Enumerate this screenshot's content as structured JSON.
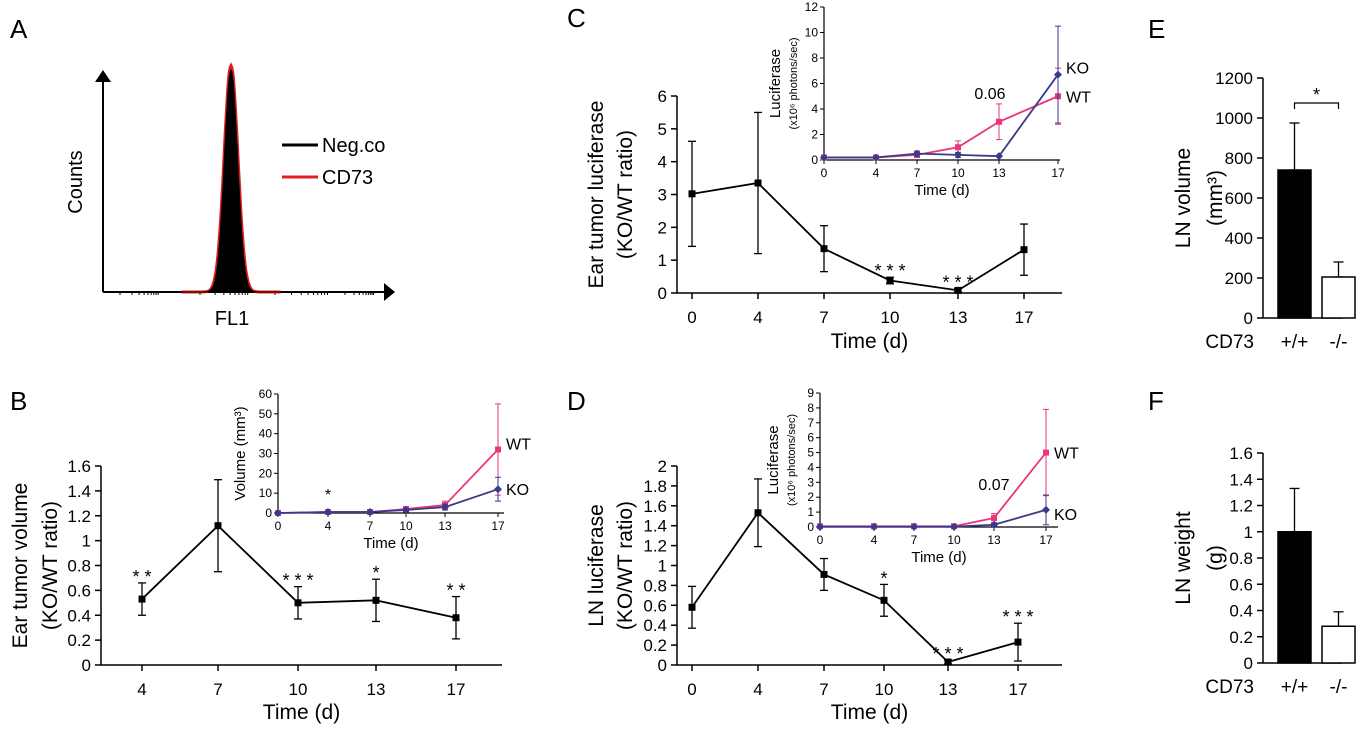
{
  "panel_labels": {
    "a": "A",
    "b": "B",
    "c": "C",
    "d": "D",
    "e": "E",
    "f": "F"
  },
  "colors": {
    "black": "#000000",
    "wt": "#e8357f",
    "ko": "#3a3a8c",
    "cd73_line": "#e02020"
  },
  "chart_data": [
    {
      "id": "A",
      "type": "histogram",
      "ylabel": "Counts",
      "xlabel": "FL1",
      "legend": [
        {
          "name": "Neg.co",
          "color": "#000000"
        },
        {
          "name": "CD73",
          "color": "#e02020"
        }
      ],
      "series": [
        {
          "name": "Neg.co",
          "peak": 1.0,
          "sd": 0.12
        },
        {
          "name": "CD73",
          "peak": 1.02,
          "sd": 0.125
        }
      ]
    },
    {
      "id": "B",
      "type": "line",
      "ylabel": "Ear tumor volume",
      "ylabel2": "(KO/WT ratio)",
      "xlabel": "Time (d)",
      "categories": [
        "4",
        "7",
        "10",
        "13",
        "17"
      ],
      "yticks": [
        "0",
        "0.2",
        "0.4",
        "0.6",
        "0.8",
        "1",
        "1.2",
        "1.4",
        "1.6"
      ],
      "ylim": [
        0,
        1.6
      ],
      "values": [
        0.53,
        1.12,
        0.5,
        0.52,
        0.38
      ],
      "err": [
        0.13,
        0.37,
        0.13,
        0.17,
        0.17
      ],
      "stars": [
        "**",
        "",
        "***",
        "*",
        "**"
      ],
      "inset": {
        "type": "line",
        "ylabel": "Volume (mm³)",
        "xlabel": "Time (d)",
        "x": [
          0,
          4,
          7,
          10,
          13,
          17
        ],
        "xticks": [
          "0",
          "4",
          "7",
          "10",
          "13",
          "17"
        ],
        "yticks": [
          "0",
          "10",
          "20",
          "30",
          "40",
          "50",
          "60"
        ],
        "ylim": [
          0,
          60
        ],
        "series": [
          {
            "name": "WT",
            "values": [
              0,
              0.5,
              0.5,
              2,
              4,
              32
            ],
            "err": [
              0,
              0.5,
              0.5,
              1,
              2,
              23
            ]
          },
          {
            "name": "KO",
            "values": [
              0,
              0.5,
              0.5,
              1.5,
              3,
              12
            ],
            "err": [
              0,
              0.5,
              0.5,
              1,
              1.5,
              6
            ]
          }
        ],
        "annotation": "*",
        "annotation_x": 4
      }
    },
    {
      "id": "C",
      "type": "line",
      "ylabel": "Ear tumor luciferase",
      "ylabel2": "(KO/WT ratio)",
      "xlabel": "Time (d)",
      "categories": [
        "0",
        "4",
        "7",
        "10",
        "13",
        "17"
      ],
      "yticks": [
        "0",
        "1",
        "2",
        "3",
        "4",
        "5",
        "6"
      ],
      "ylim": [
        0,
        6
      ],
      "values": [
        3.02,
        3.35,
        1.35,
        0.38,
        0.08,
        1.32
      ],
      "err": [
        1.6,
        2.15,
        0.7,
        0.1,
        0.05,
        0.78
      ],
      "stars": [
        "",
        "",
        "",
        "***",
        "***",
        ""
      ],
      "inset": {
        "type": "line",
        "ylabel": "Luciferase",
        "ylabel_sub": "(x10⁶ photons/sec)",
        "xlabel": "Time (d)",
        "x": [
          0,
          4,
          7,
          10,
          13,
          17
        ],
        "xticks": [
          "0",
          "4",
          "7",
          "10",
          "13",
          "17"
        ],
        "yticks": [
          "0",
          "2",
          "4",
          "6",
          "8",
          "10",
          "12"
        ],
        "ylim": [
          0,
          12
        ],
        "series": [
          {
            "name": "WT",
            "values": [
              0.2,
              0.2,
              0.4,
              1.0,
              3.0,
              5.0
            ],
            "err": [
              0.1,
              0.1,
              0.2,
              0.5,
              1.4,
              2.2
            ]
          },
          {
            "name": "KO",
            "values": [
              0.2,
              0.2,
              0.5,
              0.4,
              0.3,
              6.7
            ],
            "err": [
              0.1,
              0.1,
              0.2,
              0.2,
              0.1,
              3.8
            ]
          }
        ],
        "annotation": "0.06",
        "annotation_x": 13
      }
    },
    {
      "id": "D",
      "type": "line",
      "ylabel": "LN luciferase",
      "ylabel2": "(KO/WT ratio)",
      "xlabel": "Time (d)",
      "categories": [
        "0",
        "4",
        "7",
        "10",
        "13",
        "17"
      ],
      "yticks": [
        "0",
        "0.2",
        "0.4",
        "0.6",
        "0.8",
        "1",
        "1.2",
        "1.4",
        "1.6",
        "1.8",
        "2"
      ],
      "ylim": [
        0,
        2
      ],
      "values": [
        0.58,
        1.53,
        0.91,
        0.65,
        0.03,
        0.23
      ],
      "err": [
        0.21,
        0.34,
        0.16,
        0.16,
        0.02,
        0.19
      ],
      "stars": [
        "",
        "",
        "",
        "*",
        "***",
        "***"
      ],
      "inset": {
        "type": "line",
        "ylabel": "Luciferase",
        "ylabel_sub": "(x10⁶ photons/sec)",
        "xlabel": "Time (d)",
        "x": [
          0,
          4,
          7,
          10,
          13,
          17
        ],
        "xticks": [
          "0",
          "4",
          "7",
          "10",
          "13",
          "17"
        ],
        "yticks": [
          "0",
          "1",
          "2",
          "3",
          "4",
          "5",
          "6",
          "7",
          "8",
          "9"
        ],
        "ylim": [
          0,
          9
        ],
        "series": [
          {
            "name": "WT",
            "values": [
              0.05,
              0.05,
              0.05,
              0.05,
              0.6,
              5.0
            ],
            "err": [
              0.03,
              0.03,
              0.03,
              0.03,
              0.3,
              2.9
            ]
          },
          {
            "name": "KO",
            "values": [
              0.02,
              0.02,
              0.02,
              0.02,
              0.15,
              1.15
            ],
            "err": [
              0.01,
              0.01,
              0.01,
              0.01,
              0.1,
              1.0
            ]
          }
        ],
        "annotation": "0.07",
        "annotation_x": 13
      }
    },
    {
      "id": "E",
      "type": "bar",
      "ylabel": "LN volume",
      "ylabel_unit": "(mm³)",
      "group_label": "CD73",
      "categories": [
        "+/+",
        "-/-"
      ],
      "values": [
        740,
        205
      ],
      "err": [
        235,
        75
      ],
      "yticks": [
        "0",
        "200",
        "400",
        "600",
        "800",
        "1000",
        "1200"
      ],
      "ylim": [
        0,
        1200
      ],
      "significance": "*"
    },
    {
      "id": "F",
      "type": "bar",
      "ylabel": "LN weight",
      "ylabel_unit": "(g)",
      "group_label": "CD73",
      "categories": [
        "+/+",
        "-/-"
      ],
      "values": [
        1.0,
        0.28
      ],
      "err": [
        0.33,
        0.11
      ],
      "yticks": [
        "0",
        "0.2",
        "0.4",
        "0.6",
        "0.8",
        "1",
        "1.2",
        "1.4",
        "1.6"
      ],
      "ylim": [
        0,
        1.6
      ],
      "significance": ""
    }
  ]
}
